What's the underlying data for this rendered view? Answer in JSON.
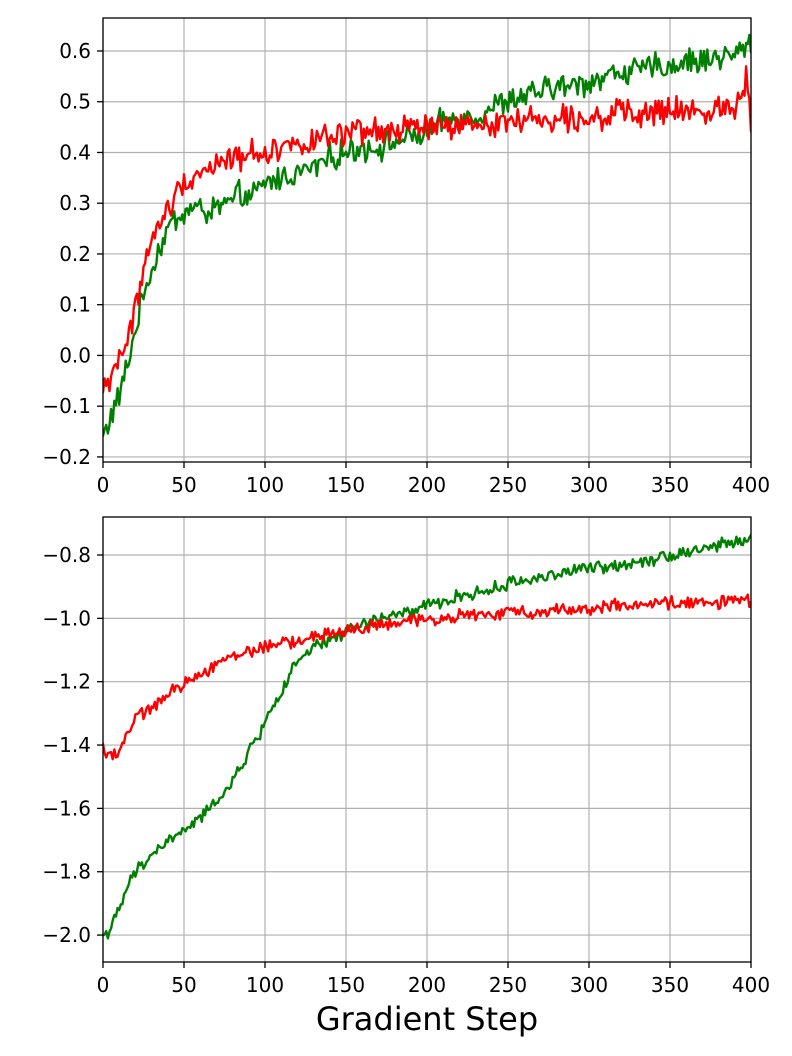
{
  "chart_data": [
    {
      "type": "line",
      "title": "",
      "xlabel": "",
      "ylabel": "",
      "xlim": [
        0,
        400
      ],
      "ylim": [
        -0.21,
        0.665
      ],
      "xticks": [
        0,
        50,
        100,
        150,
        200,
        250,
        300,
        350,
        400
      ],
      "xtick_labels": [
        "0",
        "50",
        "100",
        "150",
        "200",
        "250",
        "300",
        "350",
        "400"
      ],
      "yticks": [
        -0.2,
        -0.1,
        0.0,
        0.1,
        0.2,
        0.3,
        0.4,
        0.5,
        0.6
      ],
      "ytick_labels": [
        "−0.2",
        "−0.1",
        "0.0",
        "0.1",
        "0.2",
        "0.3",
        "0.4",
        "0.5",
        "0.6"
      ],
      "grid": true,
      "legend": false,
      "series": [
        {
          "color": "#008000",
          "x": [
            0,
            5,
            10,
            15,
            20,
            25,
            30,
            35,
            40,
            45,
            50,
            55,
            60,
            65,
            70,
            75,
            80,
            85,
            90,
            95,
            100,
            110,
            120,
            130,
            140,
            150,
            160,
            170,
            180,
            190,
            200,
            210,
            220,
            230,
            240,
            250,
            260,
            270,
            280,
            290,
            300,
            310,
            320,
            330,
            340,
            350,
            360,
            370,
            380,
            390,
            400
          ],
          "y": [
            -0.16,
            -0.12,
            -0.08,
            -0.02,
            0.05,
            0.12,
            0.17,
            0.21,
            0.25,
            0.27,
            0.28,
            0.29,
            0.29,
            0.28,
            0.29,
            0.3,
            0.3,
            0.32,
            0.31,
            0.32,
            0.34,
            0.35,
            0.36,
            0.37,
            0.39,
            0.4,
            0.41,
            0.41,
            0.42,
            0.43,
            0.44,
            0.46,
            0.47,
            0.47,
            0.49,
            0.5,
            0.51,
            0.52,
            0.53,
            0.53,
            0.54,
            0.55,
            0.56,
            0.56,
            0.57,
            0.57,
            0.58,
            0.58,
            0.59,
            0.59,
            0.62
          ]
        },
        {
          "color": "#ff0000",
          "x": [
            0,
            5,
            10,
            15,
            20,
            25,
            30,
            35,
            40,
            45,
            50,
            55,
            60,
            65,
            70,
            75,
            80,
            85,
            90,
            95,
            100,
            110,
            120,
            130,
            140,
            150,
            160,
            170,
            180,
            190,
            200,
            210,
            220,
            230,
            240,
            250,
            260,
            270,
            280,
            290,
            300,
            310,
            320,
            330,
            340,
            350,
            360,
            370,
            380,
            390,
            398,
            400
          ],
          "y": [
            -0.07,
            -0.04,
            0.0,
            0.02,
            0.1,
            0.17,
            0.22,
            0.26,
            0.29,
            0.31,
            0.35,
            0.35,
            0.36,
            0.37,
            0.38,
            0.38,
            0.39,
            0.39,
            0.4,
            0.4,
            0.4,
            0.41,
            0.42,
            0.42,
            0.43,
            0.43,
            0.44,
            0.44,
            0.44,
            0.45,
            0.45,
            0.45,
            0.45,
            0.45,
            0.46,
            0.46,
            0.47,
            0.46,
            0.47,
            0.47,
            0.47,
            0.47,
            0.48,
            0.47,
            0.48,
            0.48,
            0.48,
            0.48,
            0.49,
            0.49,
            0.55,
            0.44
          ]
        }
      ]
    },
    {
      "type": "line",
      "title": "",
      "xlabel": "Gradient Step",
      "ylabel": "",
      "xlim": [
        0,
        400
      ],
      "ylim": [
        -2.085,
        -0.68
      ],
      "xticks": [
        0,
        50,
        100,
        150,
        200,
        250,
        300,
        350,
        400
      ],
      "xtick_labels": [
        "0",
        "50",
        "100",
        "150",
        "200",
        "250",
        "300",
        "350",
        "400"
      ],
      "yticks": [
        -2.0,
        -1.8,
        -1.6,
        -1.4,
        -1.2,
        -1.0,
        -0.8
      ],
      "ytick_labels": [
        "−2.0",
        "−1.8",
        "−1.6",
        "−1.4",
        "−1.2",
        "−1.0",
        "−0.8"
      ],
      "grid": true,
      "legend": false,
      "series": [
        {
          "color": "#008000",
          "x": [
            0,
            5,
            10,
            15,
            20,
            25,
            30,
            35,
            40,
            45,
            50,
            55,
            60,
            65,
            70,
            75,
            80,
            85,
            90,
            95,
            100,
            105,
            110,
            115,
            120,
            125,
            130,
            140,
            150,
            160,
            170,
            180,
            190,
            200,
            210,
            220,
            230,
            240,
            250,
            260,
            270,
            280,
            290,
            300,
            310,
            320,
            330,
            340,
            350,
            360,
            370,
            380,
            390,
            400
          ],
          "y": [
            -2.0,
            -1.98,
            -1.92,
            -1.85,
            -1.8,
            -1.78,
            -1.74,
            -1.73,
            -1.7,
            -1.69,
            -1.67,
            -1.65,
            -1.63,
            -1.61,
            -1.57,
            -1.55,
            -1.52,
            -1.47,
            -1.42,
            -1.38,
            -1.33,
            -1.27,
            -1.24,
            -1.18,
            -1.14,
            -1.12,
            -1.09,
            -1.07,
            -1.04,
            -1.02,
            -1.0,
            -0.99,
            -0.98,
            -0.96,
            -0.95,
            -0.93,
            -0.92,
            -0.91,
            -0.89,
            -0.88,
            -0.87,
            -0.86,
            -0.85,
            -0.84,
            -0.84,
            -0.83,
            -0.82,
            -0.81,
            -0.8,
            -0.79,
            -0.78,
            -0.77,
            -0.76,
            -0.75
          ]
        },
        {
          "color": "#ff0000",
          "x": [
            0,
            5,
            10,
            15,
            20,
            25,
            30,
            35,
            40,
            45,
            50,
            55,
            60,
            65,
            70,
            75,
            80,
            85,
            90,
            95,
            100,
            110,
            120,
            130,
            140,
            150,
            160,
            170,
            180,
            190,
            200,
            210,
            220,
            230,
            240,
            250,
            260,
            270,
            280,
            290,
            300,
            310,
            320,
            330,
            340,
            350,
            360,
            370,
            380,
            390,
            400
          ],
          "y": [
            -1.41,
            -1.43,
            -1.42,
            -1.36,
            -1.32,
            -1.3,
            -1.28,
            -1.26,
            -1.25,
            -1.22,
            -1.21,
            -1.19,
            -1.17,
            -1.16,
            -1.14,
            -1.13,
            -1.12,
            -1.11,
            -1.1,
            -1.1,
            -1.09,
            -1.08,
            -1.07,
            -1.06,
            -1.05,
            -1.04,
            -1.03,
            -1.02,
            -1.02,
            -1.01,
            -1.0,
            -1.0,
            -0.99,
            -0.99,
            -0.99,
            -0.98,
            -0.98,
            -0.98,
            -0.97,
            -0.97,
            -0.97,
            -0.96,
            -0.96,
            -0.96,
            -0.96,
            -0.95,
            -0.95,
            -0.95,
            -0.95,
            -0.94,
            -0.95
          ]
        }
      ]
    }
  ]
}
